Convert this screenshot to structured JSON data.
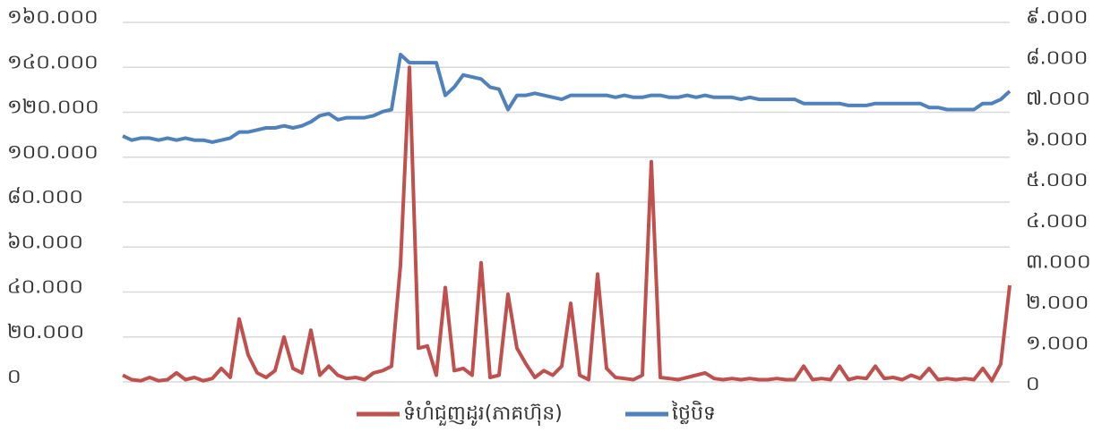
{
  "chart_data": {
    "type": "line",
    "ylim": [
      0,
      160000
    ],
    "yticks": [
      {
        "value": 0,
        "label": "០"
      },
      {
        "value": 20000,
        "label": "២០.០០០"
      },
      {
        "value": 40000,
        "label": "៤០.០០០"
      },
      {
        "value": 60000,
        "label": "៦០.០០០"
      },
      {
        "value": 80000,
        "label": "៨០.០០០"
      },
      {
        "value": 100000,
        "label": "១០០.០០០"
      },
      {
        "value": 120000,
        "label": "១២០.០០០"
      },
      {
        "value": 140000,
        "label": "១៤០.០០០"
      },
      {
        "value": 160000,
        "label": "១៦០.០០០"
      }
    ],
    "y2lim": [
      0,
      9000
    ],
    "y2ticks": [
      {
        "value": 0,
        "label": "០"
      },
      {
        "value": 1000,
        "label": "១.០០០"
      },
      {
        "value": 2000,
        "label": "២.០០០"
      },
      {
        "value": 3000,
        "label": "៣.០០០"
      },
      {
        "value": 4000,
        "label": "៤.០០០"
      },
      {
        "value": 5000,
        "label": "៥.០០០"
      },
      {
        "value": 6000,
        "label": "៦.០០០"
      },
      {
        "value": 7000,
        "label": "៧.០០០"
      },
      {
        "value": 8000,
        "label": "៨.០០០"
      },
      {
        "value": 9000,
        "label": "៩.០០០"
      }
    ],
    "grid": true,
    "legend": "bottom",
    "series": [
      {
        "name": "ទំហំជួញដូរ(ភាគហ៊ុន)",
        "color": "#c0504d",
        "axis": "y",
        "values": [
          3000,
          1000,
          500,
          2000,
          500,
          1000,
          4000,
          1000,
          2000,
          500,
          1500,
          6000,
          2000,
          28000,
          12000,
          4000,
          2000,
          5000,
          20000,
          6000,
          4000,
          23000,
          3000,
          7000,
          3000,
          1500,
          2000,
          1000,
          4000,
          5000,
          7000,
          52000,
          140000,
          15000,
          16000,
          3000,
          42000,
          5000,
          6000,
          3000,
          53000,
          2000,
          3000,
          39000,
          15000,
          8000,
          2000,
          5000,
          3000,
          7000,
          35000,
          3000,
          1000,
          48000,
          6000,
          2000,
          1500,
          1000,
          3000,
          98000,
          2000,
          1500,
          1000,
          2000,
          3000,
          4000,
          1500,
          1000,
          1500,
          1000,
          1500,
          1000,
          1000,
          1500,
          1000,
          1000,
          7000,
          1000,
          1500,
          1000,
          7000,
          1000,
          2000,
          1500,
          7000,
          1500,
          2000,
          1000,
          3000,
          1500,
          6000,
          1000,
          1500,
          1000,
          1500,
          1000,
          6000,
          500,
          8000,
          43000
        ]
      },
      {
        "name": "ថ្លៃបិទ",
        "color": "#4f81bd",
        "axis": "y2",
        "values": [
          6100,
          6000,
          6050,
          6050,
          6000,
          6050,
          6000,
          6050,
          6000,
          6000,
          5950,
          6000,
          6050,
          6200,
          6200,
          6250,
          6300,
          6300,
          6350,
          6300,
          6350,
          6450,
          6600,
          6650,
          6500,
          6550,
          6550,
          6550,
          6600,
          6700,
          6750,
          8100,
          7900,
          7900,
          7900,
          7900,
          7100,
          7300,
          7600,
          7550,
          7500,
          7300,
          7250,
          6750,
          7100,
          7100,
          7150,
          7100,
          7050,
          7000,
          7100,
          7100,
          7100,
          7100,
          7100,
          7050,
          7100,
          7050,
          7050,
          7100,
          7100,
          7050,
          7050,
          7100,
          7050,
          7100,
          7050,
          7050,
          7050,
          7000,
          7050,
          7000,
          7000,
          7000,
          7000,
          7000,
          6900,
          6900,
          6900,
          6900,
          6900,
          6850,
          6850,
          6850,
          6900,
          6900,
          6900,
          6900,
          6900,
          6900,
          6800,
          6800,
          6750,
          6750,
          6750,
          6750,
          6900,
          6900,
          7000,
          7200
        ]
      }
    ]
  }
}
